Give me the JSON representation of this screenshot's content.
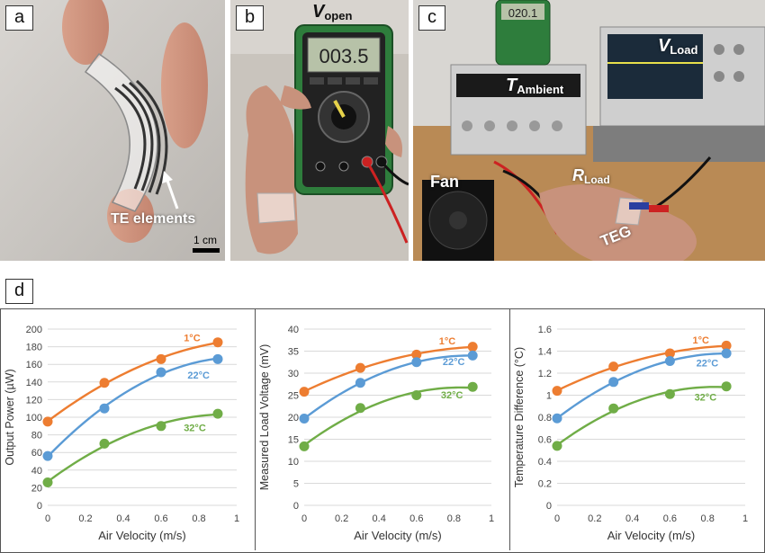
{
  "panels": {
    "a": {
      "letter": "a",
      "callout": "TE elements",
      "scale_label": "1 cm"
    },
    "b": {
      "letter": "b",
      "label_main": "V",
      "label_sub": "open",
      "display": "003.5"
    },
    "c": {
      "letter": "c",
      "labels": {
        "v_load_main": "V",
        "v_load_sub": "Load",
        "t_ambient_main": "T",
        "t_ambient_sub": "Ambient",
        "fan": "Fan",
        "r_load_main": "R",
        "r_load_sub": "Load",
        "teg": "TEG"
      },
      "meter_display": "020.1"
    },
    "d": {
      "letter": "d"
    }
  },
  "colors": {
    "orange": "#ED7D31",
    "blue": "#5B9BD5",
    "green": "#70AD47"
  },
  "chart_data": [
    {
      "type": "scatter",
      "xlabel": "Air Velocity (m/s)",
      "ylabel": "Output Power (µW)",
      "xlim": [
        0,
        1
      ],
      "ylim": [
        0,
        200
      ],
      "xticks": [
        0,
        0.2,
        0.4,
        0.6,
        0.8,
        1
      ],
      "xtick_labels": [
        "0",
        "0.2",
        "0.4",
        "0.6",
        "0.8",
        "1"
      ],
      "yticks": [
        0,
        20,
        40,
        60,
        80,
        100,
        120,
        140,
        160,
        180,
        200
      ],
      "ytick_labels": [
        "0",
        "20",
        "40",
        "60",
        "80",
        "100",
        "120",
        "140",
        "160",
        "180",
        "200"
      ],
      "grid": "horizontal",
      "trendline": "quadratic",
      "x": [
        0,
        0.3,
        0.6,
        0.9
      ],
      "series": [
        {
          "name": "1°C",
          "color": "#ED7D31",
          "values": [
            95,
            139,
            166,
            185
          ]
        },
        {
          "name": "22°C",
          "color": "#5B9BD5",
          "values": [
            56,
            110,
            151,
            166
          ]
        },
        {
          "name": "32°C",
          "color": "#70AD47",
          "values": [
            26,
            70,
            90,
            104
          ]
        }
      ],
      "series_label_pos": [
        {
          "x": 0.72,
          "y": 186
        },
        {
          "x": 0.74,
          "y": 144
        },
        {
          "x": 0.72,
          "y": 84
        }
      ]
    },
    {
      "type": "scatter",
      "xlabel": "Air Velocity (m/s)",
      "ylabel": "Measured Load Voltage (mV)",
      "xlim": [
        0,
        1
      ],
      "ylim": [
        0,
        40
      ],
      "xticks": [
        0,
        0.2,
        0.4,
        0.6,
        0.8,
        1
      ],
      "xtick_labels": [
        "0",
        "0.2",
        "0.4",
        "0.6",
        "0.8",
        "1"
      ],
      "yticks": [
        0,
        5,
        10,
        15,
        20,
        25,
        30,
        35,
        40
      ],
      "ytick_labels": [
        "0",
        "5",
        "10",
        "15",
        "20",
        "25",
        "30",
        "35",
        "40"
      ],
      "grid": "horizontal",
      "trendline": "quadratic",
      "x": [
        0,
        0.3,
        0.6,
        0.9
      ],
      "series": [
        {
          "name": "1°C",
          "color": "#ED7D31",
          "values": [
            25.8,
            31.2,
            34.2,
            36.0
          ]
        },
        {
          "name": "22°C",
          "color": "#5B9BD5",
          "values": [
            19.7,
            27.8,
            32.5,
            34.0
          ]
        },
        {
          "name": "32°C",
          "color": "#70AD47",
          "values": [
            13.4,
            22.1,
            25.0,
            26.9
          ]
        }
      ],
      "series_label_pos": [
        {
          "x": 0.72,
          "y": 36.5
        },
        {
          "x": 0.74,
          "y": 31.8
        },
        {
          "x": 0.73,
          "y": 24.3
        }
      ]
    },
    {
      "type": "scatter",
      "xlabel": "Air Velocity (m/s)",
      "ylabel": "Temperature Difference (°C)",
      "xlim": [
        0,
        1
      ],
      "ylim": [
        0,
        1.6
      ],
      "xticks": [
        0,
        0.2,
        0.4,
        0.6,
        0.8,
        1
      ],
      "xtick_labels": [
        "0",
        "0.2",
        "0.4",
        "0.6",
        "0.8",
        "1"
      ],
      "yticks": [
        0,
        0.2,
        0.4,
        0.6,
        0.8,
        1,
        1.2,
        1.4,
        1.6
      ],
      "ytick_labels": [
        "0",
        "0.2",
        "0.4",
        "0.6",
        "0.8",
        "1",
        "1.2",
        "1.4",
        "1.6"
      ],
      "grid": "horizontal",
      "trendline": "quadratic",
      "x": [
        0,
        0.3,
        0.6,
        0.9
      ],
      "series": [
        {
          "name": "1°C",
          "color": "#ED7D31",
          "values": [
            1.04,
            1.26,
            1.38,
            1.45
          ]
        },
        {
          "name": "22°C",
          "color": "#5B9BD5",
          "values": [
            0.79,
            1.12,
            1.31,
            1.38
          ]
        },
        {
          "name": "32°C",
          "color": "#70AD47",
          "values": [
            0.54,
            0.88,
            1.01,
            1.08
          ]
        }
      ],
      "series_label_pos": [
        {
          "x": 0.72,
          "y": 1.47
        },
        {
          "x": 0.74,
          "y": 1.26
        },
        {
          "x": 0.73,
          "y": 0.95
        }
      ]
    }
  ]
}
